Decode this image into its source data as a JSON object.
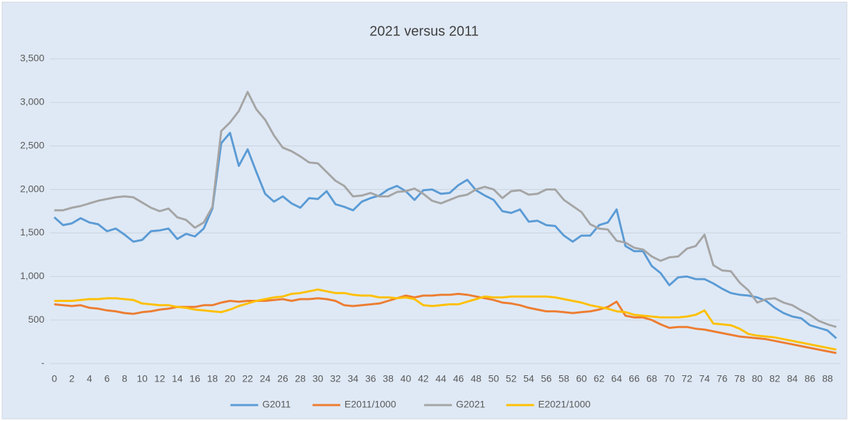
{
  "chart_data": {
    "type": "line",
    "title": "2021 versus 2011",
    "categories": [
      0,
      null,
      2,
      null,
      4,
      null,
      6,
      null,
      8,
      null,
      10,
      null,
      12,
      null,
      14,
      null,
      16,
      null,
      18,
      null,
      20,
      null,
      22,
      null,
      24,
      null,
      26,
      null,
      28,
      null,
      30,
      null,
      32,
      null,
      34,
      null,
      36,
      null,
      38,
      null,
      40,
      null,
      42,
      null,
      44,
      null,
      46,
      null,
      48,
      null,
      50,
      null,
      52,
      null,
      54,
      null,
      56,
      null,
      58,
      null,
      60,
      null,
      62,
      null,
      64,
      null,
      66,
      null,
      68,
      null,
      70,
      null,
      72,
      null,
      74,
      null,
      76,
      null,
      78,
      null,
      80,
      null,
      82,
      null,
      84,
      null,
      86,
      null,
      88,
      null
    ],
    "ylim": [
      0,
      3500
    ],
    "yticks": [
      {
        "value": 0,
        "label": "-"
      },
      500,
      {
        "value": 1000,
        "label": "1,000"
      },
      {
        "value": 1500,
        "label": "1,500"
      },
      {
        "value": 2000,
        "label": "2,000"
      },
      {
        "value": 2500,
        "label": "2,500"
      },
      {
        "value": 3000,
        "label": "3,000"
      },
      {
        "value": 3500,
        "label": "3,500"
      }
    ],
    "grid": true,
    "legend": "bottom",
    "series": [
      {
        "name": "G2011",
        "color": "#5b9bd5",
        "values": [
          1680,
          1590,
          1610,
          1670,
          1620,
          1600,
          1520,
          1550,
          1480,
          1400,
          1420,
          1520,
          1530,
          1550,
          1430,
          1490,
          1460,
          1550,
          1780,
          2530,
          2650,
          2270,
          2460,
          2200,
          1950,
          1860,
          1920,
          1840,
          1790,
          1900,
          1890,
          1980,
          1830,
          1800,
          1760,
          1860,
          1900,
          1930,
          2000,
          2040,
          1980,
          1880,
          1990,
          2000,
          1950,
          1960,
          2050,
          2110,
          1990,
          1930,
          1880,
          1750,
          1730,
          1770,
          1630,
          1640,
          1590,
          1580,
          1470,
          1400,
          1470,
          1470,
          1590,
          1620,
          1770,
          1350,
          1290,
          1290,
          1120,
          1040,
          900,
          990,
          1000,
          970,
          970,
          920,
          860,
          810,
          790,
          780,
          760,
          720,
          640,
          580,
          540,
          520,
          440,
          410,
          380,
          290
        ]
      },
      {
        "name": "E2011/1000",
        "color": "#ed7d31",
        "values": [
          680,
          670,
          660,
          670,
          640,
          630,
          610,
          600,
          580,
          570,
          590,
          600,
          620,
          630,
          650,
          650,
          650,
          670,
          670,
          700,
          720,
          710,
          720,
          720,
          720,
          730,
          740,
          720,
          740,
          740,
          750,
          740,
          720,
          670,
          660,
          670,
          680,
          690,
          720,
          750,
          780,
          760,
          780,
          780,
          790,
          790,
          800,
          790,
          770,
          750,
          730,
          700,
          690,
          670,
          640,
          620,
          600,
          600,
          590,
          580,
          590,
          600,
          620,
          650,
          710,
          550,
          530,
          530,
          500,
          450,
          410,
          420,
          420,
          400,
          390,
          370,
          350,
          330,
          310,
          300,
          290,
          280,
          260,
          240,
          220,
          200,
          180,
          160,
          140,
          120
        ]
      },
      {
        "name": "G2021",
        "color": "#a5a5a5",
        "values": [
          1760,
          1760,
          1790,
          1810,
          1840,
          1870,
          1890,
          1910,
          1920,
          1910,
          1850,
          1790,
          1750,
          1780,
          1680,
          1650,
          1560,
          1620,
          1800,
          2670,
          2770,
          2900,
          3120,
          2920,
          2800,
          2620,
          2480,
          2440,
          2380,
          2310,
          2300,
          2200,
          2100,
          2040,
          1920,
          1930,
          1960,
          1920,
          1920,
          1970,
          1980,
          2010,
          1950,
          1870,
          1840,
          1880,
          1920,
          1940,
          2000,
          2030,
          2000,
          1900,
          1980,
          1990,
          1940,
          1950,
          2000,
          2000,
          1880,
          1810,
          1740,
          1600,
          1550,
          1540,
          1410,
          1390,
          1330,
          1310,
          1230,
          1180,
          1220,
          1230,
          1320,
          1350,
          1480,
          1130,
          1070,
          1060,
          930,
          840,
          700,
          740,
          750,
          700,
          670,
          610,
          560,
          490,
          450,
          420
        ]
      },
      {
        "name": "E2021/1000",
        "color": "#ffc000",
        "values": [
          720,
          720,
          720,
          730,
          740,
          740,
          750,
          750,
          740,
          730,
          690,
          680,
          670,
          670,
          650,
          640,
          620,
          610,
          600,
          590,
          620,
          660,
          690,
          720,
          740,
          760,
          770,
          800,
          810,
          830,
          850,
          830,
          810,
          810,
          790,
          780,
          780,
          760,
          760,
          750,
          760,
          740,
          670,
          660,
          670,
          680,
          680,
          710,
          740,
          770,
          760,
          760,
          770,
          770,
          770,
          770,
          770,
          760,
          740,
          720,
          700,
          670,
          650,
          630,
          600,
          590,
          560,
          550,
          540,
          530,
          530,
          530,
          540,
          560,
          610,
          460,
          450,
          440,
          400,
          340,
          320,
          310,
          300,
          280,
          260,
          240,
          220,
          200,
          180,
          160
        ]
      }
    ]
  }
}
